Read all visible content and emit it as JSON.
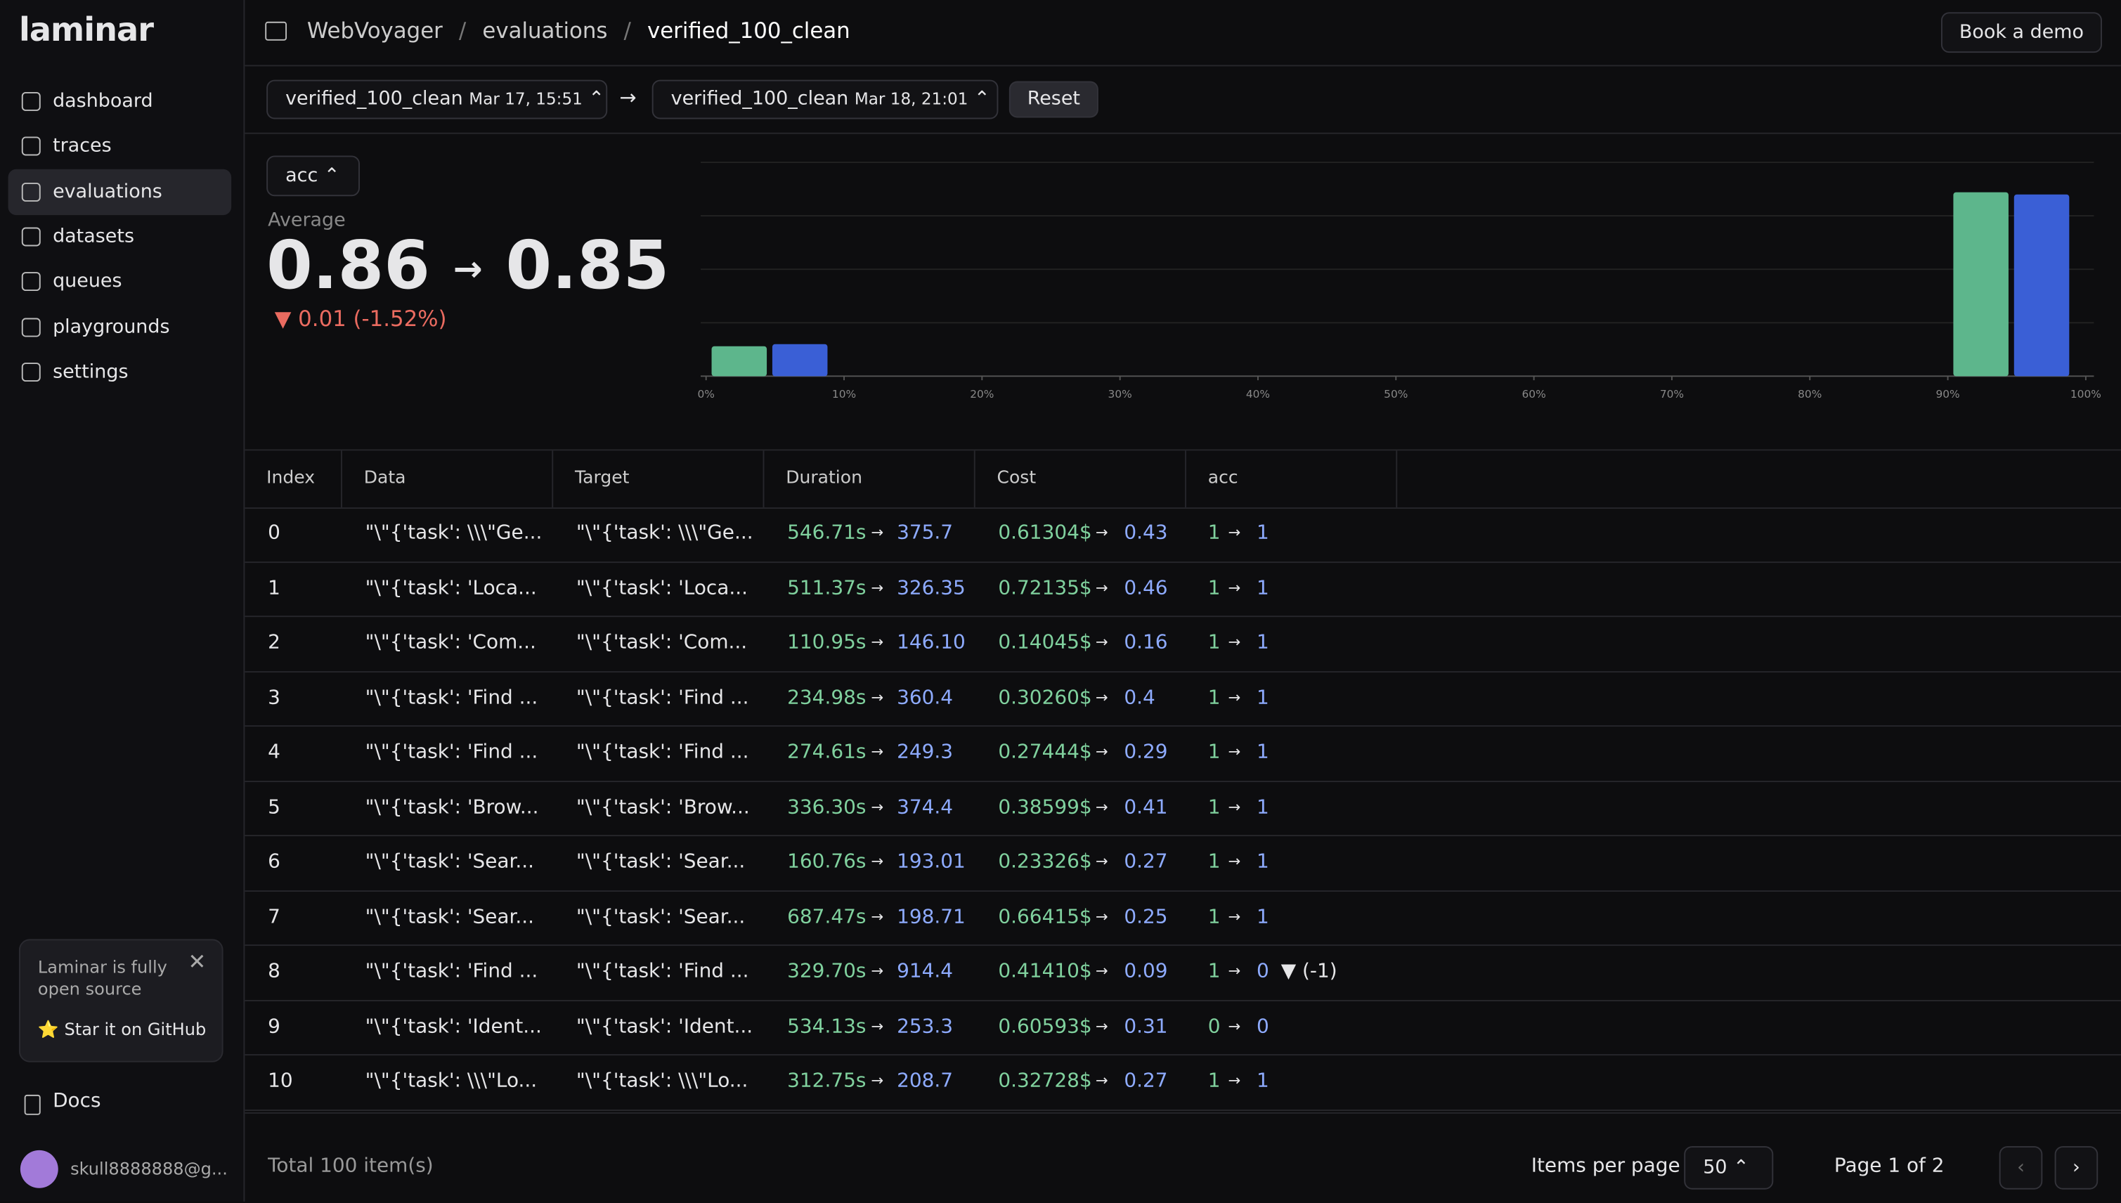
{
  "brand": "laminar",
  "nav": [
    "dashboard",
    "traces",
    "evaluations",
    "datasets",
    "queues",
    "playgrounds",
    "settings"
  ],
  "promo": {
    "text": "Laminar is fully open source",
    "link": "⭐ Star it on GitHub"
  },
  "docs": "Docs",
  "user": "skull8888888@g...",
  "breadcrumb": [
    "WebVoyager",
    "evaluations",
    "verified_100_clean"
  ],
  "book_demo": "Book a demo",
  "compare": {
    "left": {
      "name": "verified_100_clean",
      "date": "Mar 17, 15:51"
    },
    "right": {
      "name": "verified_100_clean",
      "date": "Mar 18, 21:01"
    },
    "reset": "Reset"
  },
  "metric": {
    "selector": "acc",
    "label": "Average",
    "from": "0.86",
    "to": "0.85",
    "change": "▼ 0.01 (-1.52%)"
  },
  "chart_data": {
    "type": "histogram",
    "bins": [
      0,
      10,
      20,
      30,
      40,
      50,
      60,
      70,
      80,
      90,
      100
    ],
    "xticks": [
      {
        "value": 0,
        "label": "0%"
      },
      {
        "value": 10,
        "label": "10%"
      },
      {
        "value": 20,
        "label": "20%"
      },
      {
        "value": 30,
        "label": "30%"
      },
      {
        "value": 40,
        "label": "40%"
      },
      {
        "value": 50,
        "label": "50%"
      },
      {
        "value": 60,
        "label": "60%"
      },
      {
        "value": 70,
        "label": "70%"
      },
      {
        "value": 80,
        "label": "80%"
      },
      {
        "value": 90,
        "label": "90%"
      },
      {
        "value": 100,
        "label": "100%"
      }
    ],
    "ylim": [
      0,
      100
    ],
    "grid": true,
    "series": [
      {
        "color": "#5db68c",
        "values": [
          14,
          0,
          0,
          0,
          0,
          0,
          0,
          0,
          0,
          86
        ]
      },
      {
        "color": "#3a5fd6",
        "values": [
          15,
          0,
          0,
          0,
          0,
          0,
          0,
          0,
          0,
          85
        ]
      }
    ]
  },
  "table": {
    "headers": [
      "Index",
      "Data",
      "Target",
      "Duration",
      "Cost",
      "acc"
    ],
    "rows": [
      [
        "0",
        "\"\\\"{'task': \\\\\\\"Ge...",
        "\"\\\"{'task': \\\\\\\"Ge...",
        "546.71s",
        "375.7",
        "0.61304$",
        "0.43",
        "1",
        "1"
      ],
      [
        "1",
        "\"\\\"{'task': 'Loca...",
        "\"\\\"{'task': 'Loca...",
        "511.37s",
        "326.35",
        "0.72135$",
        "0.46",
        "1",
        "1"
      ],
      [
        "2",
        "\"\\\"{'task': 'Com...",
        "\"\\\"{'task': 'Com...",
        "110.95s",
        "146.10",
        "0.14045$",
        "0.16",
        "1",
        "1"
      ],
      [
        "3",
        "\"\\\"{'task': 'Find ...",
        "\"\\\"{'task': 'Find ...",
        "234.98s",
        "360.4",
        "0.30260$",
        "0.4",
        "1",
        "1"
      ],
      [
        "4",
        "\"\\\"{'task': 'Find ...",
        "\"\\\"{'task': 'Find ...",
        "274.61s",
        "249.3",
        "0.27444$",
        "0.29",
        "1",
        "1"
      ],
      [
        "5",
        "\"\\\"{'task': 'Brow...",
        "\"\\\"{'task': 'Brow...",
        "336.30s",
        "374.4",
        "0.38599$",
        "0.41",
        "1",
        "1"
      ],
      [
        "6",
        "\"\\\"{'task': 'Sear...",
        "\"\\\"{'task': 'Sear...",
        "160.76s",
        "193.01",
        "0.23326$",
        "0.27",
        "1",
        "1"
      ],
      [
        "7",
        "\"\\\"{'task': 'Sear...",
        "\"\\\"{'task': 'Sear...",
        "687.47s",
        "198.71",
        "0.66415$",
        "0.25",
        "1",
        "1"
      ],
      [
        "8",
        "\"\\\"{'task': 'Find ...",
        "\"\\\"{'task': 'Find ...",
        "329.70s",
        "914.4",
        "0.41410$",
        "0.09",
        "1",
        "0",
        "▼ (-1)"
      ],
      [
        "9",
        "\"\\\"{'task': 'Ident...",
        "\"\\\"{'task': 'Ident...",
        "534.13s",
        "253.3",
        "0.60593$",
        "0.31",
        "0",
        "0"
      ],
      [
        "10",
        "\"\\\"{'task': \\\\\\\"Lo...",
        "\"\\\"{'task': \\\\\\\"Lo...",
        "312.75s",
        "208.7",
        "0.32728$",
        "0.27",
        "1",
        "1"
      ]
    ]
  },
  "footer": {
    "total": "Total 100 item(s)",
    "per_page_label": "Items per page",
    "per_page": "50",
    "page": "Page 1 of 2"
  }
}
